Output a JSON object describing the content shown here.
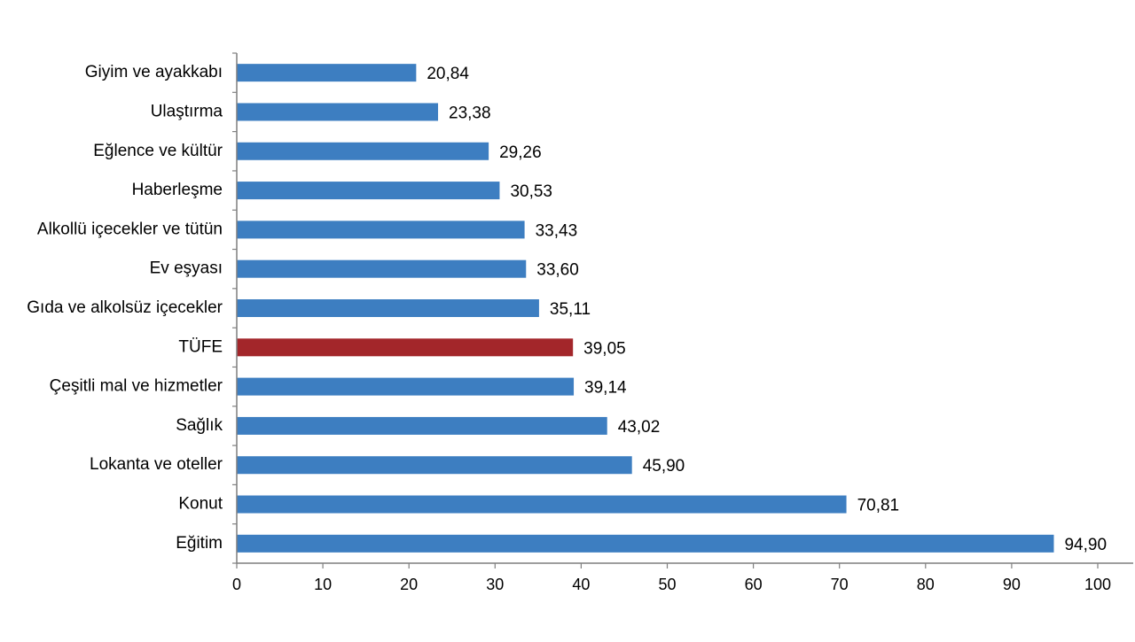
{
  "chart_data": {
    "type": "bar",
    "orientation": "horizontal",
    "categories": [
      "Giyim ve ayakkabı",
      "Ulaştırma",
      "Eğlence ve kültür",
      "Haberleşme",
      "Alkollü içecekler ve tütün",
      "Ev eşyası",
      "Gıda ve alkolsüz içecekler",
      "TÜFE",
      "Çeşitli mal ve hizmetler",
      "Sağlık",
      "Lokanta ve oteller",
      "Konut",
      "Eğitim"
    ],
    "values": [
      20.84,
      23.38,
      29.26,
      30.53,
      33.43,
      33.6,
      35.11,
      39.05,
      39.14,
      43.02,
      45.9,
      70.81,
      94.9
    ],
    "value_labels": [
      "20,84",
      "23,38",
      "29,26",
      "30,53",
      "33,43",
      "33,60",
      "35,11",
      "39,05",
      "39,14",
      "43,02",
      "45,90",
      "70,81",
      "94,90"
    ],
    "highlight_category": "TÜFE",
    "xlim": [
      0,
      100
    ],
    "x_ticks": [
      0,
      10,
      20,
      30,
      40,
      50,
      60,
      70,
      80,
      90,
      100
    ],
    "grid": false,
    "legend": "none",
    "colors": {
      "bar": "#3d7ec1",
      "highlight": "#a3262a",
      "axis": "#7f7f7f"
    }
  }
}
